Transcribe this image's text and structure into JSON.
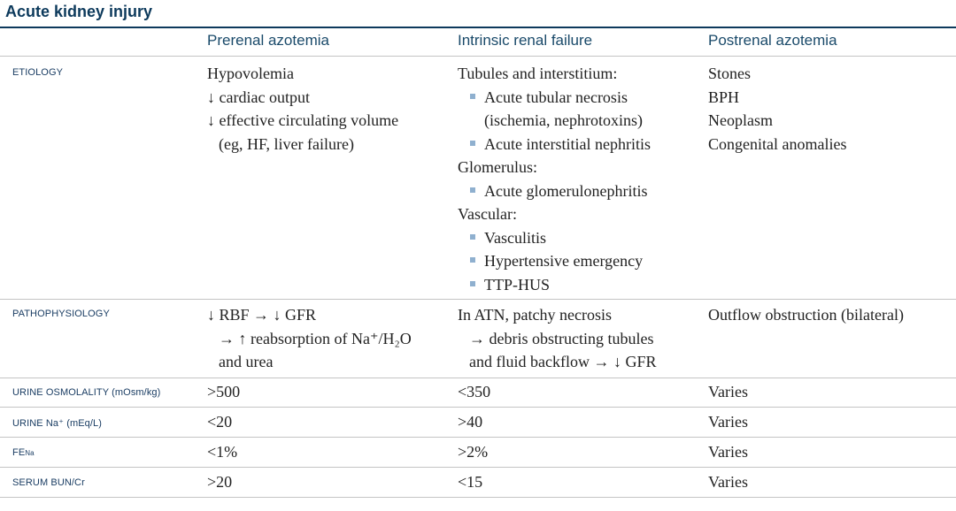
{
  "title": "Acute kidney injury",
  "columns": [
    "Prerenal azotemia",
    "Intrinsic renal failure",
    "Postrenal azotemia"
  ],
  "rows": {
    "etiology": {
      "label": "ETIOLOGY",
      "prerenal": [
        "Hypovolemia",
        "↓ cardiac output",
        "↓ effective circulating volume",
        "(eg, HF, liver failure)"
      ],
      "intrinsic": {
        "tubules": "Tubules and interstitium:",
        "atn": "Acute tubular necrosis",
        "atn_causes": "(ischemia, nephrotoxins)",
        "ain": "Acute interstitial nephritis",
        "glomerulus": "Glomerulus:",
        "agn": "Acute glomerulonephritis",
        "vascular": "Vascular:",
        "vasculitis": "Vasculitis",
        "hypertensive": "Hypertensive emergency",
        "ttp": "TTP-HUS"
      },
      "postrenal": [
        "Stones",
        "BPH",
        "Neoplasm",
        "Congenital anomalies"
      ]
    },
    "pathophysiology": {
      "label": "PATHOPHYSIOLOGY",
      "prerenal": [
        "↓ RBF → ↓ GFR",
        "→ ↑ reabsorption of Na⁺/H₂O",
        "and urea"
      ],
      "intrinsic": [
        "In ATN, patchy necrosis",
        "→ debris obstructing tubules",
        "and fluid backflow → ↓ GFR"
      ],
      "postrenal": "Outflow obstruction (bilateral)"
    },
    "urine_osmolality": {
      "label": "URINE OSMOLALITY (mOsm/kg)",
      "prerenal": ">500",
      "intrinsic": "<350",
      "postrenal": "Varies"
    },
    "urine_na": {
      "label": "URINE Na⁺ (mEq/L)",
      "prerenal": "<20",
      "intrinsic": ">40",
      "postrenal": "Varies"
    },
    "fena": {
      "label_main": "FE",
      "label_sub": "Na",
      "prerenal": "<1%",
      "intrinsic": ">2%",
      "postrenal": "Varies"
    },
    "serum_bun_cr": {
      "label": "SERUM BUN/Cr",
      "prerenal": ">20",
      "intrinsic": "<15",
      "postrenal": "Varies"
    }
  }
}
